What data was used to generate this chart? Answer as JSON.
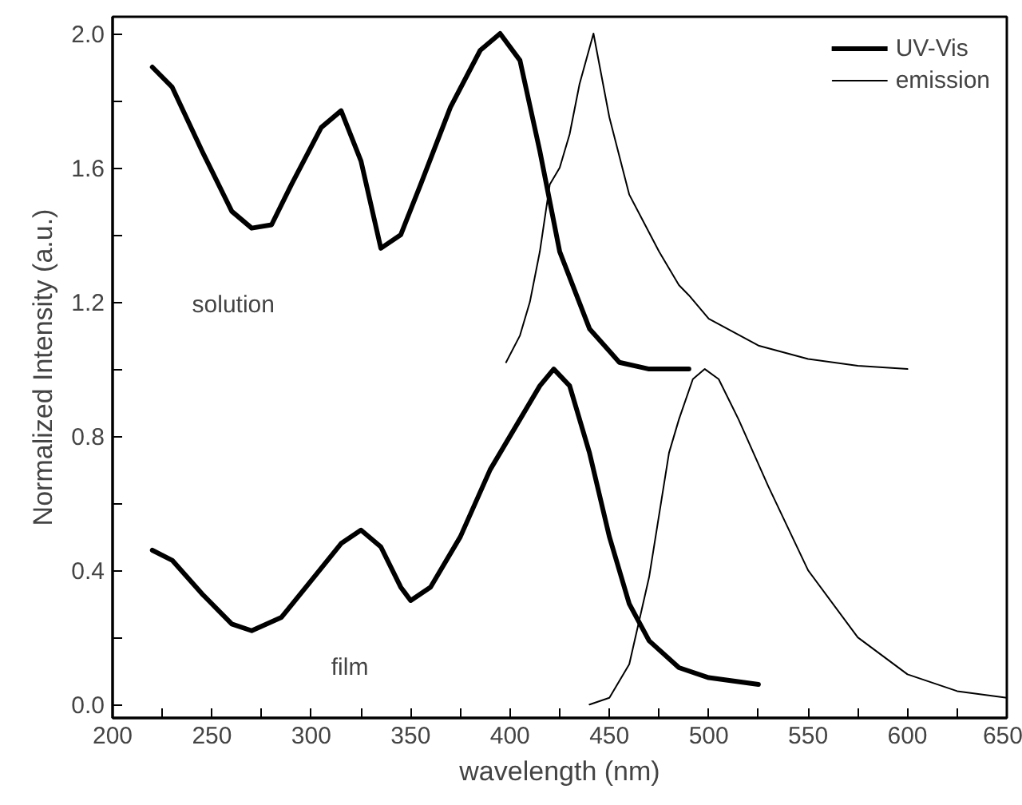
{
  "chart_data": {
    "type": "line",
    "xlabel": "wavelength (nm)",
    "ylabel": "Normalized Intensity (a.u.)",
    "xlim": [
      200,
      650
    ],
    "ylim": [
      -0.04,
      2.05
    ],
    "xticks": [
      200,
      {
        "value": 225,
        "label": null
      },
      250,
      {
        "value": 275,
        "label": null
      },
      300,
      {
        "value": 325,
        "label": null
      },
      350,
      {
        "value": 375,
        "label": null
      },
      400,
      {
        "value": 425,
        "label": null
      },
      450,
      {
        "value": 475,
        "label": null
      },
      500,
      {
        "value": 525,
        "label": null
      },
      550,
      {
        "value": 575,
        "label": null
      },
      600,
      {
        "value": 625,
        "label": null
      },
      650
    ],
    "yticks": [
      {
        "value": 0,
        "label": "0.0"
      },
      {
        "value": 0.2,
        "label": null
      },
      0.4,
      {
        "value": 0.6,
        "label": null
      },
      0.8,
      {
        "value": 1.0,
        "label": null
      },
      1.2,
      {
        "value": 1.4,
        "label": null
      },
      1.6,
      {
        "value": 1.8,
        "label": null
      },
      {
        "value": 2.0,
        "label": "2.0"
      }
    ],
    "grid": false,
    "legend": "top right",
    "series": [
      {
        "name": "UV-Vis",
        "color": "#000000",
        "x": [
          220,
          230,
          245,
          260,
          270,
          280,
          290,
          305,
          315,
          325,
          335,
          345,
          355,
          370,
          385,
          395,
          405,
          415,
          425,
          440,
          455,
          470,
          490
        ],
        "values": [
          1.9,
          1.84,
          1.65,
          1.47,
          1.42,
          1.43,
          1.55,
          1.72,
          1.77,
          1.62,
          1.36,
          1.4,
          1.55,
          1.78,
          1.95,
          2.0,
          1.92,
          1.65,
          1.35,
          1.12,
          1.02,
          1.0,
          1.0
        ]
      },
      {
        "name": "emission",
        "color": "#000000",
        "x": [
          398,
          405,
          410,
          415,
          420,
          425,
          430,
          435,
          442,
          450,
          460,
          475,
          485,
          490,
          500,
          525,
          550,
          575,
          600
        ],
        "values": [
          1.02,
          1.1,
          1.2,
          1.35,
          1.55,
          1.6,
          1.7,
          1.85,
          2.0,
          1.75,
          1.52,
          1.35,
          1.25,
          1.22,
          1.15,
          1.07,
          1.03,
          1.01,
          1.0
        ]
      },
      {
        "color": "#000000",
        "x": [
          220,
          230,
          245,
          260,
          270,
          285,
          300,
          315,
          325,
          335,
          345,
          350,
          360,
          375,
          390,
          405,
          415,
          422,
          430,
          440,
          450,
          460,
          470,
          485,
          500,
          525
        ],
        "values": [
          0.46,
          0.43,
          0.33,
          0.24,
          0.22,
          0.26,
          0.37,
          0.48,
          0.52,
          0.47,
          0.35,
          0.31,
          0.35,
          0.5,
          0.7,
          0.85,
          0.95,
          1.0,
          0.95,
          0.75,
          0.5,
          0.3,
          0.19,
          0.11,
          0.08,
          0.06
        ]
      },
      {
        "color": "#000000",
        "x": [
          440,
          450,
          460,
          470,
          480,
          485,
          492,
          498,
          505,
          515,
          530,
          550,
          575,
          600,
          625,
          650
        ],
        "values": [
          0.0,
          0.02,
          0.12,
          0.38,
          0.75,
          0.85,
          0.97,
          1.0,
          0.97,
          0.85,
          0.65,
          0.4,
          0.2,
          0.09,
          0.04,
          0.02
        ]
      }
    ],
    "annotations": [
      "solution",
      "film"
    ]
  }
}
